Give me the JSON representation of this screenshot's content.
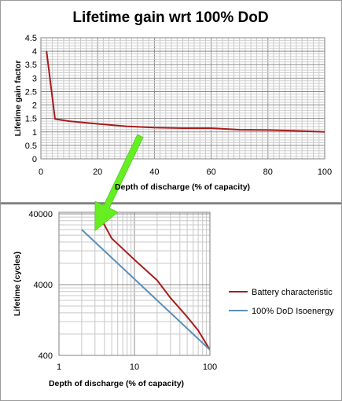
{
  "chart_data": [
    {
      "type": "line",
      "title": "Lifetime gain wrt 100% DoD",
      "xlabel": "Depth of discharge (% of capacity)",
      "ylabel": "Lifetime gain factor",
      "xlim": [
        0,
        100
      ],
      "ylim": [
        0,
        4.5
      ],
      "x_ticks": [
        0,
        20,
        40,
        60,
        80,
        100
      ],
      "y_ticks": [
        0,
        0.5,
        1,
        1.5,
        2,
        2.5,
        3,
        3.5,
        4,
        4.5
      ],
      "y_tick_labels": [
        "0",
        "0.5",
        "1",
        "1.5",
        "2",
        "2.5",
        "3",
        "3.5",
        "4",
        "4.5"
      ],
      "grid": true,
      "series": [
        {
          "color": "#a61c1c",
          "x": [
            2,
            5,
            10,
            20,
            30,
            40,
            50,
            60,
            70,
            80,
            90,
            100
          ],
          "y": [
            4.0,
            1.48,
            1.4,
            1.3,
            1.21,
            1.16,
            1.14,
            1.14,
            1.08,
            1.07,
            1.04,
            1.0
          ]
        }
      ]
    },
    {
      "type": "line",
      "xlabel": "Depth of discharge (% of capacity)",
      "ylabel": "Lifetime (cycles)",
      "x_scale": "log",
      "y_scale": "log",
      "xlim": [
        1,
        100
      ],
      "ylim": [
        400,
        40000
      ],
      "x_ticks": [
        1,
        10,
        100
      ],
      "y_ticks": [
        400,
        4000,
        40000
      ],
      "grid": true,
      "legend": "right",
      "series": [
        {
          "name": "Battery characteristic",
          "color": "#a61c1c",
          "x": [
            2,
            5,
            10,
            20,
            30,
            50,
            70,
            100
          ],
          "y": [
            110000,
            18000,
            9000,
            4600,
            2600,
            1400,
            900,
            480
          ]
        },
        {
          "name": "100% DoD Isoenergy",
          "color": "#5b8fb9",
          "x": [
            2,
            100
          ],
          "y": [
            24000,
            480
          ]
        }
      ]
    }
  ],
  "annotation": {
    "type": "arrow",
    "color": "#66ee22",
    "from": {
      "chart": 0,
      "x": 35,
      "y": 0.85
    },
    "to": {
      "chart": 1,
      "x": 3,
      "y": 23000
    }
  }
}
